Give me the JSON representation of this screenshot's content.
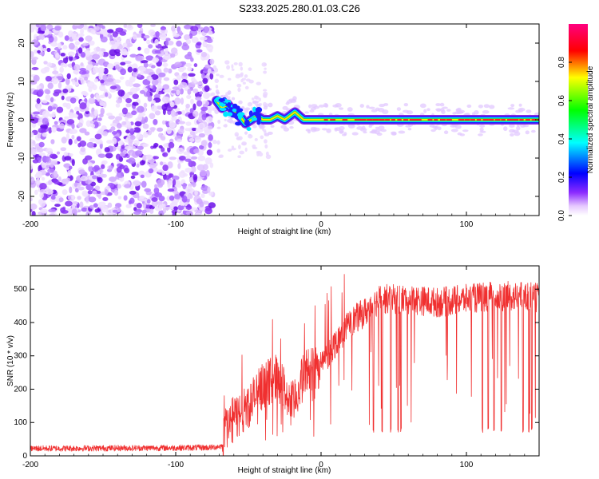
{
  "title": "S233.2025.280.01.03.C26",
  "chart_data": [
    {
      "type": "heatmap",
      "xlabel": "Height of straight line (km)",
      "ylabel": "Frequency (Hz)",
      "xlim": [
        -200,
        150
      ],
      "ylim": [
        -25,
        25
      ],
      "x_ticks": [
        -200,
        -100,
        0,
        100
      ],
      "x_tick_labels": [
        "-200",
        "-100",
        "0",
        "100"
      ],
      "y_ticks": [
        -20,
        -10,
        0,
        10,
        20
      ],
      "y_tick_labels": [
        "-20",
        "-10",
        "0",
        "10",
        "20"
      ],
      "noise_region_x": [
        -200,
        -75
      ],
      "ridge": [
        {
          "x": -72,
          "y": 5
        },
        {
          "x": -68,
          "y": 3
        },
        {
          "x": -64,
          "y": 4
        },
        {
          "x": -60,
          "y": 2
        },
        {
          "x": -56,
          "y": 1
        },
        {
          "x": -52,
          "y": -1
        },
        {
          "x": -48,
          "y": 0
        },
        {
          "x": -44,
          "y": 1
        },
        {
          "x": -40,
          "y": 0
        },
        {
          "x": -35,
          "y": 0
        },
        {
          "x": -30,
          "y": 1
        },
        {
          "x": -25,
          "y": 0
        },
        {
          "x": -18,
          "y": 2
        },
        {
          "x": -12,
          "y": 0
        },
        {
          "x": -6,
          "y": 0
        },
        {
          "x": 0,
          "y": 0
        },
        {
          "x": 150,
          "y": 0
        }
      ],
      "colorbar": {
        "label": "Normalized spectral amplitude",
        "range": [
          0,
          1
        ],
        "ticks": [
          0.0,
          0.2,
          0.4,
          0.6,
          0.8
        ],
        "tick_labels": [
          "0.0",
          "0.2",
          "0.4",
          "0.6",
          "0.8"
        ]
      }
    },
    {
      "type": "line",
      "xlabel": "Height of straight line (km)",
      "ylabel": "SNR (10 * v/v)",
      "xlim": [
        -200,
        150
      ],
      "ylim": [
        0,
        570
      ],
      "x_ticks": [
        -200,
        -100,
        0,
        100
      ],
      "x_tick_labels": [
        "-200",
        "-100",
        "0",
        "100"
      ],
      "y_ticks": [
        0,
        100,
        200,
        300,
        400,
        500
      ],
      "y_tick_labels": [
        "0",
        "100",
        "200",
        "300",
        "400",
        "500"
      ],
      "color": "#f03030",
      "series": [
        {
          "name": "SNR",
          "x": [
            -200,
            -100,
            -75,
            -68,
            -65,
            -60,
            -50,
            -40,
            -30,
            -20,
            -10,
            0,
            10,
            20,
            30,
            40,
            60,
            80,
            100,
            120,
            150
          ],
          "y": [
            22,
            24,
            25,
            30,
            90,
            110,
            150,
            210,
            240,
            150,
            260,
            270,
            340,
            400,
            430,
            470,
            470,
            460,
            470,
            480,
            475
          ]
        }
      ],
      "dropouts_x": [
        36,
        42,
        48,
        53,
        55,
        111,
        115,
        119,
        124,
        139,
        143,
        145
      ]
    }
  ]
}
